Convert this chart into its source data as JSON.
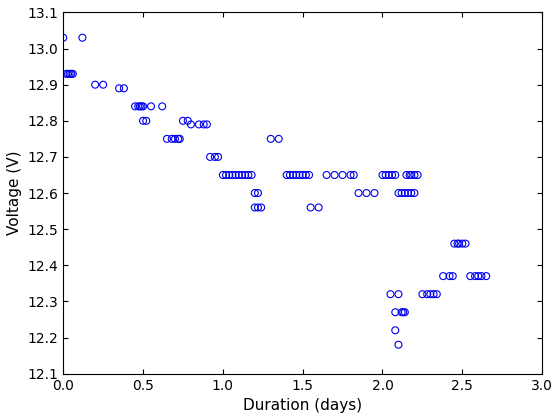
{
  "x": [
    0.0,
    0.12,
    0.02,
    0.03,
    0.04,
    0.05,
    0.06,
    0.2,
    0.25,
    0.35,
    0.38,
    0.45,
    0.47,
    0.48,
    0.49,
    0.5,
    0.5,
    0.52,
    0.55,
    0.62,
    0.65,
    0.68,
    0.7,
    0.72,
    0.73,
    0.75,
    0.78,
    0.8,
    0.85,
    0.88,
    0.9,
    0.92,
    0.95,
    0.97,
    1.0,
    1.02,
    1.04,
    1.06,
    1.08,
    1.1,
    1.12,
    1.14,
    1.16,
    1.18,
    1.2,
    1.22,
    1.2,
    1.22,
    1.24,
    1.3,
    1.35,
    1.4,
    1.42,
    1.44,
    1.46,
    1.48,
    1.5,
    1.52,
    1.54,
    1.55,
    1.6,
    1.65,
    1.7,
    1.75,
    1.8,
    1.82,
    1.85,
    1.9,
    1.95,
    2.0,
    2.02,
    2.04,
    2.06,
    2.08,
    2.1,
    2.12,
    2.14,
    2.16,
    2.18,
    2.2,
    2.05,
    2.1,
    2.08,
    2.12,
    2.13,
    2.14,
    2.08,
    2.1,
    2.15,
    2.17,
    2.18,
    2.2,
    2.22,
    2.25,
    2.28,
    2.3,
    2.32,
    2.34,
    2.38,
    2.42,
    2.44,
    2.45,
    2.47,
    2.48,
    2.5,
    2.52,
    2.55,
    2.58,
    2.6,
    2.62,
    2.65
  ],
  "y": [
    13.03,
    13.03,
    12.93,
    12.93,
    12.93,
    12.93,
    12.93,
    12.9,
    12.9,
    12.89,
    12.89,
    12.84,
    12.84,
    12.84,
    12.84,
    12.84,
    12.8,
    12.8,
    12.84,
    12.84,
    12.75,
    12.75,
    12.75,
    12.75,
    12.75,
    12.8,
    12.8,
    12.79,
    12.79,
    12.79,
    12.79,
    12.7,
    12.7,
    12.7,
    12.65,
    12.65,
    12.65,
    12.65,
    12.65,
    12.65,
    12.65,
    12.65,
    12.65,
    12.65,
    12.6,
    12.6,
    12.56,
    12.56,
    12.56,
    12.75,
    12.75,
    12.65,
    12.65,
    12.65,
    12.65,
    12.65,
    12.65,
    12.65,
    12.65,
    12.56,
    12.56,
    12.65,
    12.65,
    12.65,
    12.65,
    12.65,
    12.6,
    12.6,
    12.6,
    12.65,
    12.65,
    12.65,
    12.65,
    12.65,
    12.6,
    12.6,
    12.6,
    12.6,
    12.6,
    12.6,
    12.32,
    12.32,
    12.27,
    12.27,
    12.27,
    12.27,
    12.22,
    12.18,
    12.65,
    12.65,
    12.65,
    12.65,
    12.65,
    12.32,
    12.32,
    12.32,
    12.32,
    12.32,
    12.37,
    12.37,
    12.37,
    12.46,
    12.46,
    12.46,
    12.46,
    12.46,
    12.37,
    12.37,
    12.37,
    12.37,
    12.37
  ],
  "marker_color": "#0000EE",
  "marker_facecolor": "none",
  "marker_size": 5,
  "marker_linewidth": 0.8,
  "xlabel": "Duration (days)",
  "ylabel": "Voltage (V)",
  "xlim": [
    0,
    3
  ],
  "ylim": [
    12.1,
    13.1
  ],
  "xticks": [
    0,
    0.5,
    1,
    1.5,
    2,
    2.5,
    3
  ],
  "yticks": [
    12.1,
    12.2,
    12.3,
    12.4,
    12.5,
    12.6,
    12.7,
    12.8,
    12.9,
    13.0,
    13.1
  ],
  "background_color": "#ffffff",
  "figure_size": [
    5.6,
    4.2
  ],
  "dpi": 100
}
